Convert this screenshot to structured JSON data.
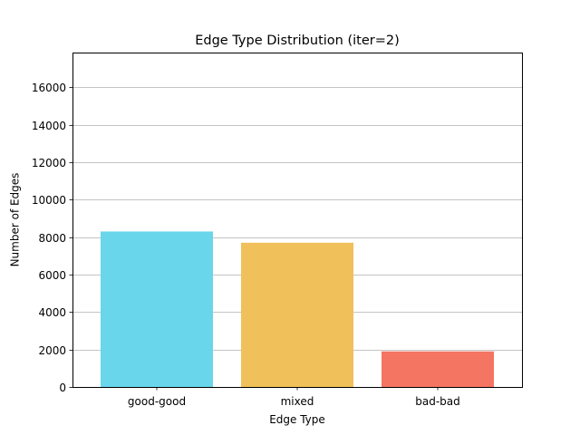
{
  "chart_data": {
    "type": "bar",
    "title": "Edge Type Distribution (iter=2)",
    "xlabel": "Edge Type",
    "ylabel": "Number of Edges",
    "categories": [
      "good-good",
      "mixed",
      "bad-bad"
    ],
    "values": [
      8300,
      7700,
      1900
    ],
    "colors": [
      "#69d6ec",
      "#f0c05a",
      "#f47561"
    ],
    "ylim": [
      0,
      17850
    ],
    "yticks": [
      0,
      2000,
      4000,
      6000,
      8000,
      10000,
      12000,
      14000,
      16000
    ],
    "grid": "y-axis horizontal lines",
    "grid_color": "#b0b0b0",
    "legend": "none"
  }
}
